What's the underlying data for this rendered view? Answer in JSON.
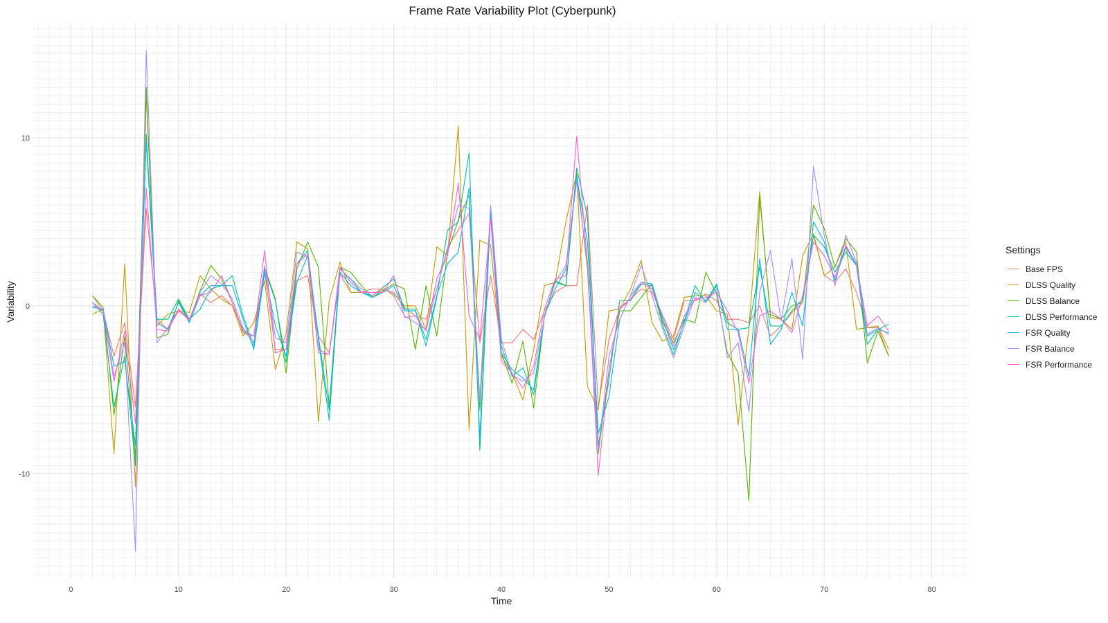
{
  "title": "Frame Rate Variability Plot (Cyberpunk)",
  "chart_data": {
    "type": "line",
    "title": "Frame Rate Variability Plot (Cyberpunk)",
    "xlabel": "Time",
    "ylabel": "Variability",
    "xlim": [
      -3.5,
      83.5
    ],
    "ylim": [
      -16.2,
      16.8
    ],
    "x_ticks": [
      0,
      10,
      20,
      30,
      40,
      50,
      60,
      70,
      80
    ],
    "y_ticks": [
      -10,
      0,
      10
    ],
    "grid": true,
    "legend_title": "Settings",
    "legend_position": "right",
    "x": [
      2,
      3,
      4,
      5,
      6,
      7,
      8,
      9,
      10,
      11,
      12,
      13,
      14,
      15,
      16,
      17,
      18,
      19,
      20,
      21,
      22,
      23,
      24,
      25,
      26,
      27,
      28,
      29,
      30,
      31,
      32,
      33,
      34,
      35,
      36,
      37,
      38,
      39,
      40,
      41,
      42,
      43,
      44,
      45,
      46,
      47,
      48,
      49,
      50,
      51,
      52,
      53,
      54,
      55,
      56,
      57,
      58,
      59,
      60,
      61,
      62,
      63,
      64,
      65,
      66,
      67,
      68,
      69,
      70,
      71,
      72,
      73,
      74,
      75,
      76
    ],
    "series": [
      {
        "name": "Base FPS",
        "color": "#F8766D",
        "values": [
          0.6,
          -0.3,
          -3.0,
          -1.0,
          -6.0,
          5.8,
          -0.8,
          -1.4,
          -0.3,
          -0.8,
          0.7,
          0.2,
          0.6,
          0.0,
          -1.4,
          -2.2,
          2.0,
          -2.6,
          -2.6,
          1.5,
          1.8,
          -1.8,
          -2.8,
          1.9,
          0.8,
          0.8,
          1.0,
          1.0,
          0.8,
          -0.1,
          -0.6,
          -0.8,
          1.0,
          3.5,
          4.5,
          5.5,
          -2.2,
          1.8,
          -2.2,
          -2.2,
          -1.4,
          -2.0,
          -0.3,
          0.8,
          1.2,
          1.2,
          6.0,
          -6.0,
          -2.0,
          -0.2,
          0.4,
          1.0,
          0.8,
          -0.6,
          -2.0,
          0.3,
          0.3,
          0.7,
          0.3,
          -0.8,
          -0.8,
          -1.0,
          0.0,
          -1.8,
          -1.2,
          -0.4,
          0.2,
          4.2,
          1.8,
          1.4,
          2.2,
          0.8,
          -1.3,
          -1.3,
          -3.0
        ]
      },
      {
        "name": "DLSS Quality",
        "color": "#C49A00",
        "values": [
          -0.5,
          -0.2,
          -8.8,
          2.5,
          -10.8,
          12.5,
          -1.2,
          -0.5,
          -0.3,
          -0.4,
          1.8,
          1.0,
          0.4,
          0.0,
          -1.8,
          -1.0,
          1.5,
          -3.8,
          -1.6,
          3.8,
          3.4,
          -6.9,
          0.3,
          2.6,
          0.8,
          0.8,
          0.6,
          1.0,
          0.7,
          0.0,
          0.0,
          -1.4,
          3.5,
          3.0,
          10.7,
          -7.4,
          3.9,
          3.6,
          -3.0,
          -4.0,
          -5.6,
          -2.6,
          1.2,
          1.4,
          5.0,
          7.9,
          -4.8,
          -6.2,
          -0.3,
          -0.2,
          1.0,
          2.7,
          -1.0,
          -2.1,
          -1.8,
          0.5,
          0.6,
          0.6,
          -0.3,
          -0.5,
          -7.1,
          -1.3,
          6.8,
          -0.7,
          -0.8,
          -1.4,
          3.0,
          4.3,
          1.8,
          2.3,
          3.8,
          -1.4,
          -1.3,
          -1.2,
          -2.6
        ]
      },
      {
        "name": "DLSS Balance",
        "color": "#53B400",
        "values": [
          0.6,
          -0.1,
          -6.5,
          -1.8,
          -9.0,
          13.0,
          -1.9,
          -1.7,
          0.3,
          -0.9,
          0.9,
          2.4,
          1.6,
          0.2,
          -1.6,
          -1.8,
          2.3,
          0.4,
          -4.0,
          2.2,
          3.8,
          2.3,
          -6.0,
          2.3,
          2.0,
          1.2,
          0.5,
          0.9,
          1.3,
          1.0,
          -2.6,
          1.2,
          -1.8,
          3.2,
          5.1,
          6.6,
          -6.2,
          5.6,
          -2.8,
          -4.6,
          -2.1,
          -6.1,
          -0.6,
          1.5,
          1.2,
          7.9,
          2.2,
          -8.8,
          -3.8,
          -0.3,
          -0.3,
          0.5,
          1.3,
          -1.0,
          -2.2,
          -0.8,
          -1.0,
          2.0,
          0.7,
          -2.8,
          -4.0,
          -11.6,
          6.5,
          -0.5,
          -0.8,
          0.0,
          0.2,
          6.0,
          4.6,
          2.3,
          4.0,
          3.2,
          -3.4,
          -1.5,
          -3.0
        ]
      },
      {
        "name": "DLSS Performance",
        "color": "#00C094",
        "values": [
          0.2,
          -0.5,
          -6.0,
          -3.0,
          -9.5,
          10.2,
          -0.8,
          -0.8,
          0.4,
          -0.8,
          -0.2,
          1.0,
          1.2,
          1.8,
          -0.6,
          -2.4,
          2.2,
          0.3,
          -3.4,
          2.5,
          3.3,
          -2.0,
          -6.8,
          2.2,
          1.6,
          0.8,
          0.6,
          1.1,
          1.6,
          -0.2,
          -0.2,
          -2.4,
          0.5,
          4.5,
          5.0,
          9.1,
          -8.6,
          5.8,
          -2.4,
          -4.2,
          -3.7,
          -5.3,
          -0.6,
          1.4,
          1.2,
          8.2,
          5.3,
          -8.3,
          -4.4,
          0.3,
          0.3,
          1.3,
          1.2,
          -1.2,
          -2.9,
          -0.9,
          1.2,
          0.2,
          1.2,
          -1.0,
          -1.4,
          -1.3,
          2.3,
          -1.2,
          -1.2,
          -0.3,
          0.4,
          4.2,
          3.5,
          2.0,
          3.2,
          2.4,
          -2.3,
          -1.4,
          -1.1
        ]
      },
      {
        "name": "FSR Quality",
        "color": "#00B6EB",
        "values": [
          -0.1,
          -0.2,
          -3.6,
          -3.3,
          -8.3,
          9.8,
          -1.0,
          -1.4,
          0.2,
          -1.0,
          0.6,
          1.2,
          1.2,
          1.2,
          -0.8,
          -2.6,
          2.0,
          -1.2,
          -3.0,
          1.4,
          3.0,
          -1.8,
          -6.2,
          2.0,
          1.2,
          0.8,
          0.5,
          0.8,
          1.2,
          -0.3,
          -0.3,
          -2.0,
          0.6,
          2.5,
          3.2,
          7.0,
          -7.9,
          5.6,
          -2.8,
          -3.8,
          -4.3,
          -5.0,
          -0.6,
          1.0,
          2.2,
          7.7,
          3.8,
          -7.6,
          -5.4,
          -0.8,
          0.6,
          1.4,
          1.3,
          -0.8,
          -2.6,
          -1.0,
          0.8,
          0.3,
          1.3,
          -1.4,
          -1.4,
          -4.2,
          2.8,
          -2.3,
          -1.4,
          0.8,
          -1.2,
          5.0,
          3.8,
          1.5,
          3.5,
          2.4,
          -1.8,
          -1.4,
          -1.6
        ]
      },
      {
        "name": "FSR Balance",
        "color": "#A58AFF",
        "values": [
          0.0,
          -0.3,
          -4.2,
          -2.2,
          -14.6,
          15.2,
          -2.2,
          -1.3,
          -0.2,
          -0.9,
          0.8,
          1.8,
          1.3,
          0.4,
          -1.3,
          -2.2,
          2.4,
          -1.9,
          -2.2,
          3.2,
          2.9,
          -2.8,
          -2.9,
          1.8,
          1.6,
          1.0,
          0.6,
          1.1,
          0.6,
          -0.6,
          -1.0,
          -1.4,
          1.0,
          3.4,
          6.0,
          5.8,
          -5.6,
          6.0,
          -2.0,
          -4.1,
          -4.5,
          -4.0,
          -0.7,
          1.4,
          2.4,
          7.4,
          2.6,
          -8.6,
          -3.0,
          -0.8,
          0.6,
          2.4,
          0.6,
          -1.4,
          -3.1,
          -1.2,
          0.5,
          0.2,
          1.0,
          -3.1,
          -2.2,
          -6.3,
          0.8,
          3.3,
          -0.9,
          2.8,
          -3.2,
          8.3,
          4.2,
          1.2,
          4.2,
          2.6,
          -1.7,
          -1.3,
          -1.7
        ]
      },
      {
        "name": "FSR Performance",
        "color": "#FB61D7",
        "values": [
          0.2,
          -0.3,
          -4.5,
          -1.5,
          -7.0,
          7.0,
          -1.4,
          -1.5,
          -0.2,
          -0.8,
          0.6,
          0.8,
          1.8,
          0.2,
          -1.5,
          -1.8,
          3.3,
          -2.8,
          -2.6,
          2.5,
          3.1,
          -2.6,
          -2.9,
          2.3,
          1.4,
          0.8,
          0.8,
          0.8,
          1.8,
          -0.7,
          -0.6,
          -1.5,
          1.6,
          3.0,
          7.3,
          -0.6,
          -2.0,
          5.2,
          -3.3,
          -4.0,
          -4.9,
          -3.6,
          -0.2,
          1.6,
          1.8,
          10.1,
          2.5,
          -10.1,
          -3.8,
          -0.1,
          0.4,
          1.4,
          1.0,
          -0.6,
          -2.4,
          -0.6,
          0.4,
          0.5,
          0.8,
          -0.3,
          -1.6,
          -4.6,
          -0.6,
          -0.3,
          -0.8,
          -1.6,
          0.6,
          3.8,
          3.0,
          1.7,
          3.6,
          2.5,
          -1.2,
          -0.6,
          -1.5
        ]
      }
    ]
  }
}
